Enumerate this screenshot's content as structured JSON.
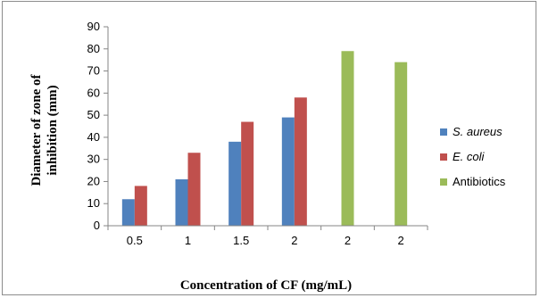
{
  "chart_data": {
    "type": "bar",
    "categories": [
      "0.5",
      "1",
      "1.5",
      "2",
      "2",
      "2"
    ],
    "series": [
      {
        "name": "S. aureus",
        "italic": true,
        "color": "#4f81bd",
        "values": [
          12,
          21,
          38,
          49,
          null,
          null
        ]
      },
      {
        "name": "E. coli",
        "italic": true,
        "color": "#c0504d",
        "values": [
          18,
          33,
          47,
          58,
          null,
          null
        ]
      },
      {
        "name": "Antibiotics",
        "italic": false,
        "color": "#9bbb59",
        "values": [
          null,
          null,
          null,
          null,
          79,
          74
        ]
      }
    ],
    "ylim": [
      0,
      90
    ],
    "yticks": [
      "0",
      "10",
      "20",
      "30",
      "40",
      "50",
      "60",
      "70",
      "80",
      "90"
    ],
    "xlabel": "Concentration of CF (mg/mL)",
    "ylabel": [
      "Diameter of zone of",
      "inhibition (mm)"
    ],
    "grid": false,
    "legend": "right"
  }
}
